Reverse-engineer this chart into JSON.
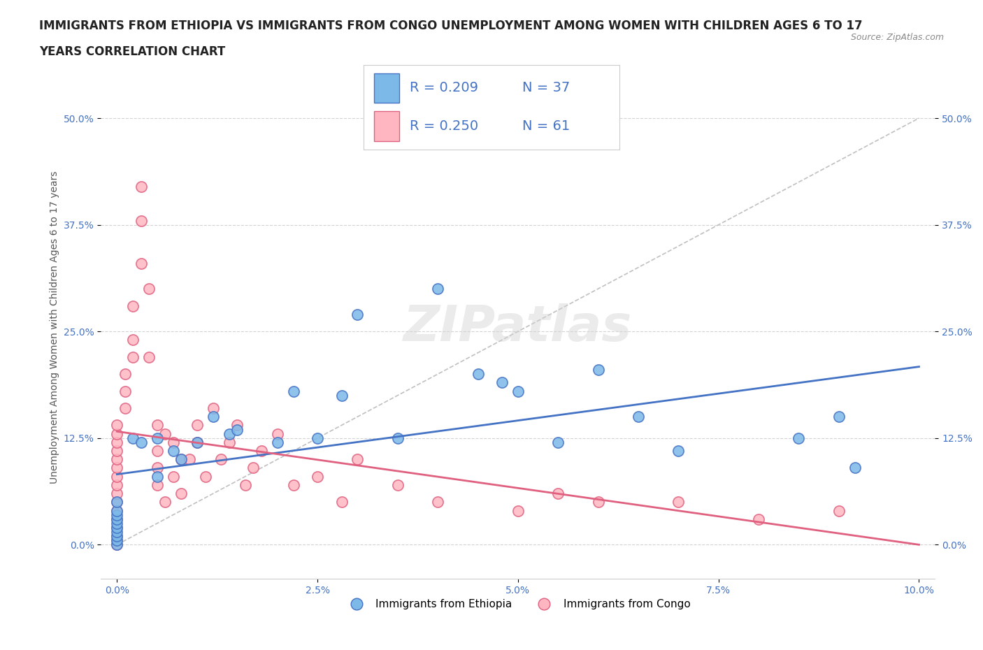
{
  "title_line1": "IMMIGRANTS FROM ETHIOPIA VS IMMIGRANTS FROM CONGO UNEMPLOYMENT AMONG WOMEN WITH CHILDREN AGES 6 TO 17",
  "title_line2": "YEARS CORRELATION CHART",
  "source": "Source: ZipAtlas.com",
  "ylabel": "Unemployment Among Women with Children Ages 6 to 17 years",
  "xtick_labels": [
    "0.0%",
    "2.5%",
    "5.0%",
    "7.5%",
    "10.0%"
  ],
  "ytick_positions": [
    0.0,
    12.5,
    25.0,
    37.5,
    50.0
  ],
  "ytick_labels": [
    "0.0%",
    "12.5%",
    "25.0%",
    "37.5%",
    "50.0%"
  ],
  "ethiopia_color": "#7cb9e8",
  "ethiopia_edge": "#4472c4",
  "congo_color": "#ffb6c1",
  "congo_edge": "#e06080",
  "ethiopia_line_color": "#4472c4",
  "congo_line_color": "#e06080",
  "diag_line_color": "#c0c0c0",
  "watermark": "ZIPatlas",
  "legend_r_ethiopia": "R = 0.209",
  "legend_n_ethiopia": "N = 37",
  "legend_r_congo": "R = 0.250",
  "legend_n_congo": "N = 61",
  "legend_label_ethiopia": "Immigrants from Ethiopia",
  "legend_label_congo": "Immigrants from Congo",
  "ethiopia_x": [
    0.0,
    0.0,
    0.0,
    0.0,
    0.0,
    0.0,
    0.0,
    0.0,
    0.0,
    0.0,
    0.2,
    0.3,
    0.5,
    0.5,
    0.7,
    0.8,
    1.0,
    1.2,
    1.4,
    1.5,
    2.0,
    2.2,
    2.5,
    2.8,
    3.0,
    3.5,
    4.0,
    4.5,
    4.8,
    5.0,
    5.5,
    6.0,
    6.5,
    7.0,
    8.5,
    9.0,
    9.2
  ],
  "ethiopia_y": [
    0.0,
    0.5,
    1.0,
    1.5,
    2.0,
    2.5,
    3.0,
    3.5,
    4.0,
    5.0,
    12.5,
    12.0,
    8.0,
    12.5,
    11.0,
    10.0,
    12.0,
    15.0,
    13.0,
    13.5,
    12.0,
    18.0,
    12.5,
    17.5,
    27.0,
    12.5,
    30.0,
    20.0,
    19.0,
    18.0,
    12.0,
    20.5,
    15.0,
    11.0,
    12.5,
    15.0,
    9.0
  ],
  "congo_x": [
    0.0,
    0.0,
    0.0,
    0.0,
    0.0,
    0.0,
    0.0,
    0.0,
    0.0,
    0.0,
    0.0,
    0.0,
    0.0,
    0.0,
    0.0,
    0.0,
    0.1,
    0.1,
    0.1,
    0.2,
    0.2,
    0.2,
    0.3,
    0.3,
    0.3,
    0.4,
    0.4,
    0.5,
    0.5,
    0.5,
    0.5,
    0.6,
    0.6,
    0.7,
    0.7,
    0.8,
    0.8,
    0.9,
    1.0,
    1.0,
    1.1,
    1.2,
    1.3,
    1.4,
    1.5,
    1.6,
    1.7,
    1.8,
    2.0,
    2.2,
    2.5,
    2.8,
    3.0,
    3.5,
    4.0,
    5.0,
    5.5,
    6.0,
    7.0,
    8.0,
    9.0
  ],
  "congo_y": [
    0.0,
    0.5,
    1.0,
    2.0,
    3.0,
    4.0,
    5.0,
    6.0,
    7.0,
    8.0,
    9.0,
    10.0,
    11.0,
    12.0,
    13.0,
    14.0,
    16.0,
    18.0,
    20.0,
    22.0,
    24.0,
    28.0,
    33.0,
    38.0,
    42.0,
    22.0,
    30.0,
    7.0,
    9.0,
    11.0,
    14.0,
    13.0,
    5.0,
    8.0,
    12.0,
    6.0,
    10.0,
    10.0,
    12.0,
    14.0,
    8.0,
    16.0,
    10.0,
    12.0,
    14.0,
    7.0,
    9.0,
    11.0,
    13.0,
    7.0,
    8.0,
    5.0,
    10.0,
    7.0,
    5.0,
    4.0,
    6.0,
    5.0,
    5.0,
    3.0,
    4.0
  ],
  "background_color": "#ffffff",
  "grid_color": "#d3d3d3",
  "title_fontsize": 12,
  "axis_label_fontsize": 10,
  "tick_fontsize": 10
}
